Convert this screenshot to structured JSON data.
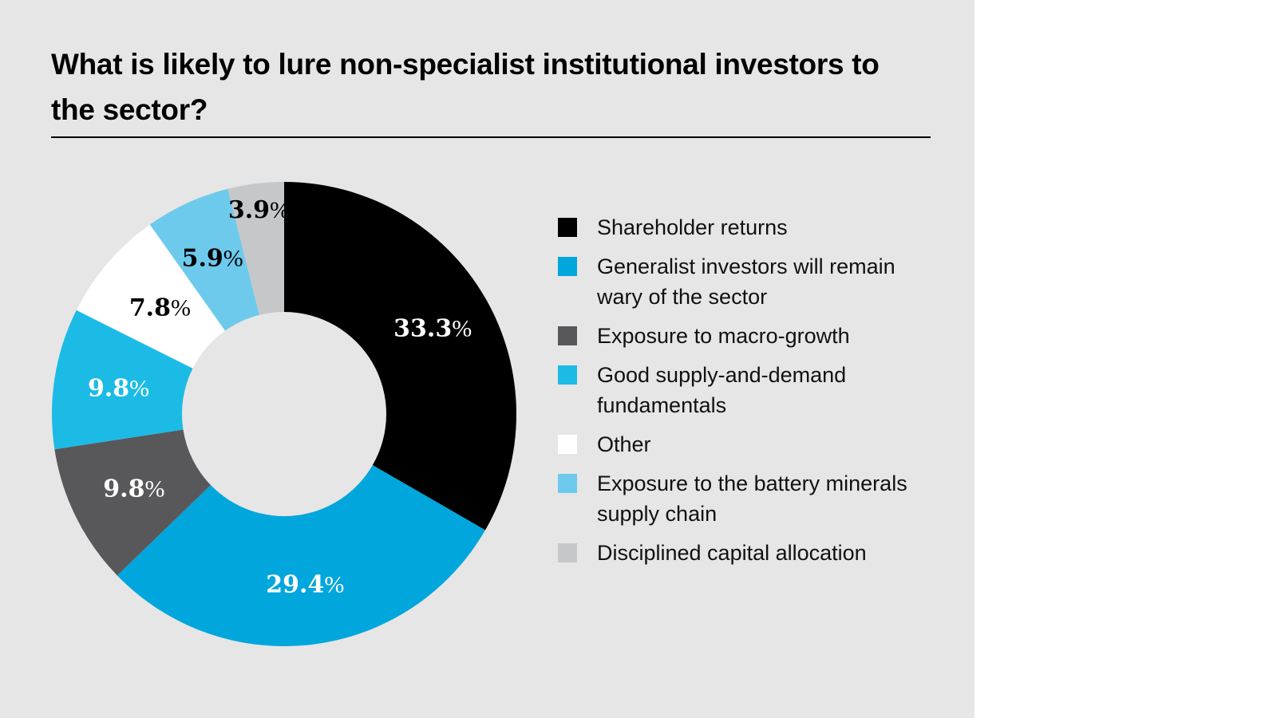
{
  "chart_data": {
    "type": "pie",
    "variant": "donut",
    "title": "What is likely to lure non-specialist institutional investors to the sector?",
    "categories": [
      "Shareholder returns",
      "Generalist investors will remain wary of the sector",
      "Exposure to macro-growth",
      "Good supply-and-demand fundamentals",
      "Other",
      "Exposure to the battery minerals supply chain",
      "Disciplined capital allocation"
    ],
    "values": [
      33.3,
      29.4,
      9.8,
      9.8,
      7.8,
      5.9,
      3.9
    ],
    "labels": [
      "33.3",
      "29.4",
      "9.8",
      "9.8",
      "7.8",
      "5.9",
      "3.9"
    ],
    "unit": "%",
    "colors": [
      "#000000",
      "#00a6dc",
      "#58585a",
      "#1bbbe6",
      "#ffffff",
      "#6dcaec",
      "#c6c7c9"
    ],
    "label_colors": [
      "#ffffff",
      "#ffffff",
      "#ffffff",
      "#ffffff",
      "#000000",
      "#000000",
      "#000000"
    ],
    "legend_position": "right"
  }
}
